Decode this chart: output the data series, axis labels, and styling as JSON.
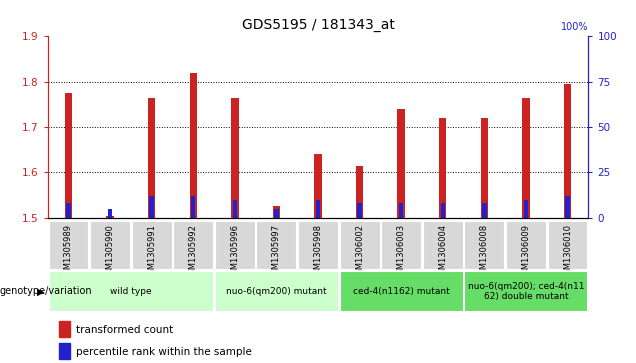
{
  "title": "GDS5195 / 181343_at",
  "samples": [
    "GSM1305989",
    "GSM1305990",
    "GSM1305991",
    "GSM1305992",
    "GSM1305996",
    "GSM1305997",
    "GSM1305998",
    "GSM1306002",
    "GSM1306003",
    "GSM1306004",
    "GSM1306008",
    "GSM1306009",
    "GSM1306010"
  ],
  "red_values": [
    1.775,
    1.505,
    1.765,
    1.82,
    1.765,
    1.525,
    1.64,
    1.615,
    1.74,
    1.72,
    1.72,
    1.765,
    1.795
  ],
  "blue_percentile": [
    8,
    5,
    12,
    12,
    10,
    5,
    10,
    8,
    8,
    8,
    8,
    10,
    12
  ],
  "ymin": 1.5,
  "ymax": 1.9,
  "yticks_left": [
    1.5,
    1.6,
    1.7,
    1.8,
    1.9
  ],
  "yticks_right": [
    0,
    25,
    50,
    75,
    100
  ],
  "genotype_groups": [
    {
      "label": "wild type",
      "start": 0,
      "end": 3,
      "color": "#ccffcc"
    },
    {
      "label": "nuo-6(qm200) mutant",
      "start": 4,
      "end": 6,
      "color": "#ccffcc"
    },
    {
      "label": "ced-4(n1162) mutant",
      "start": 7,
      "end": 9,
      "color": "#66dd66"
    },
    {
      "label": "nuo-6(qm200); ced-4(n11\n62) double mutant",
      "start": 10,
      "end": 12,
      "color": "#66dd66"
    }
  ],
  "red_color": "#cc2222",
  "blue_color": "#2222cc",
  "label_color_red": "#cc2222",
  "label_color_blue": "#2222cc",
  "legend_red": "transformed count",
  "legend_blue": "percentile rank within the sample",
  "genotype_label": "genotype/variation"
}
